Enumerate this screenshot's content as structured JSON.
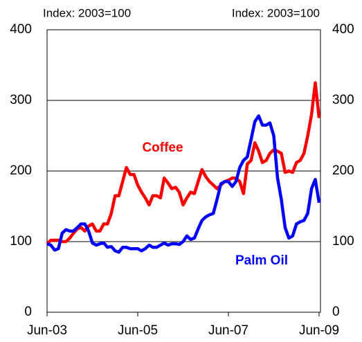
{
  "chart_data": {
    "type": "line",
    "ylabel": "Index: 2003=100",
    "y2label": "Index: 2003=100",
    "categories": [
      "Jun-03",
      null,
      null,
      null,
      null,
      null,
      null,
      null,
      null,
      null,
      null,
      null,
      null,
      null,
      null,
      null,
      null,
      null,
      null,
      null,
      null,
      null,
      null,
      null,
      "Jun-05",
      null,
      null,
      null,
      null,
      null,
      null,
      null,
      null,
      null,
      null,
      null,
      null,
      null,
      null,
      null,
      null,
      null,
      null,
      null,
      null,
      null,
      null,
      null,
      "Jun-07",
      null,
      null,
      null,
      null,
      null,
      null,
      null,
      null,
      null,
      null,
      null,
      null,
      null,
      null,
      null,
      null,
      null,
      null,
      null,
      null,
      null,
      null,
      null,
      "Jun-09"
    ],
    "series": [
      {
        "name": "Coffee",
        "color": "#ff0000",
        "values": [
          97,
          102,
          102,
          102,
          100,
          100,
          105,
          112,
          118,
          120,
          115,
          122,
          125,
          115,
          115,
          125,
          125,
          140,
          165,
          165,
          185,
          205,
          195,
          195,
          180,
          170,
          162,
          152,
          165,
          165,
          162,
          190,
          183,
          175,
          177,
          170,
          152,
          162,
          170,
          168,
          185,
          202,
          192,
          185,
          180,
          175,
          180,
          185,
          187,
          190,
          190,
          185,
          168,
          210,
          215,
          240,
          228,
          212,
          215,
          225,
          230,
          228,
          225,
          198,
          200,
          198,
          212,
          215,
          225,
          250,
          280,
          325,
          275
        ]
      },
      {
        "name": "Palm Oil",
        "color": "#0000ff",
        "values": [
          97,
          95,
          88,
          90,
          112,
          117,
          115,
          115,
          120,
          125,
          125,
          115,
          98,
          95,
          97,
          98,
          92,
          93,
          87,
          85,
          92,
          92,
          90,
          90,
          90,
          87,
          90,
          95,
          92,
          92,
          95,
          98,
          95,
          97,
          97,
          96,
          100,
          108,
          103,
          105,
          118,
          130,
          135,
          138,
          140,
          160,
          182,
          185,
          185,
          178,
          185,
          205,
          215,
          220,
          245,
          270,
          278,
          265,
          265,
          268,
          250,
          190,
          160,
          120,
          105,
          108,
          125,
          128,
          130,
          140,
          175,
          188,
          155
        ]
      }
    ],
    "ylim": [
      0,
      400
    ],
    "yticks": [
      0,
      100,
      200,
      300,
      400
    ],
    "y2lim": [
      0,
      400
    ],
    "y2ticks": [
      0,
      100,
      200,
      300,
      400
    ],
    "grid": true
  }
}
